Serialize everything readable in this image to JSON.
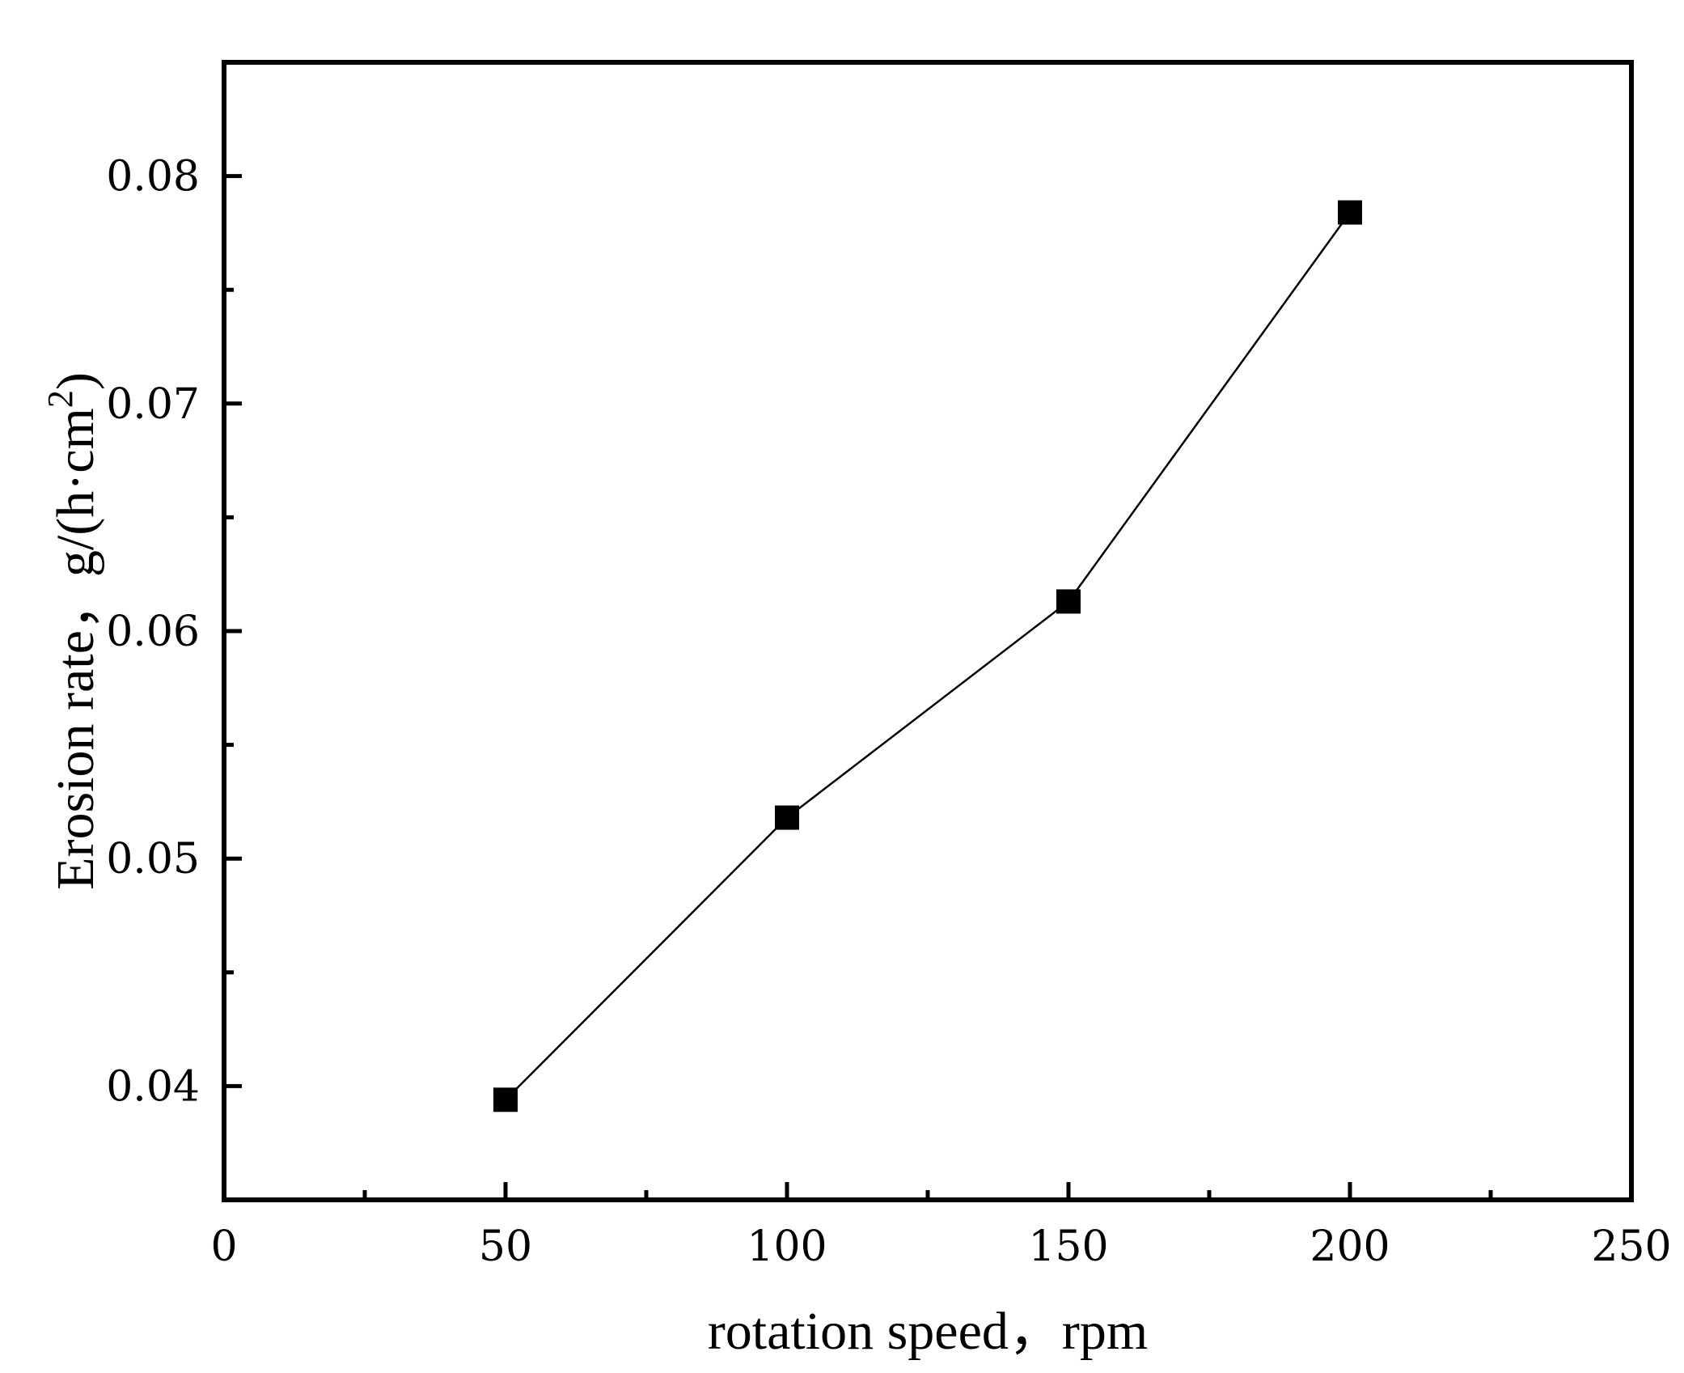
{
  "chart_data": {
    "type": "line",
    "x": [
      50,
      100,
      150,
      200
    ],
    "series": [
      {
        "values": [
          0.0394,
          0.0518,
          0.0613,
          0.0784
        ]
      }
    ],
    "xlabel": "rotation speed，rpm",
    "ylabel_prefix": "Erosion rate，g/(h·cm",
    "ylabel_superscript": "2",
    "ylabel_suffix": ")",
    "xlim": [
      0,
      250
    ],
    "ylim": [
      0.035,
      0.085
    ],
    "x_ticks": [
      0,
      50,
      100,
      150,
      200,
      250
    ],
    "x_tick_labels": [
      "0",
      "50",
      "100",
      "150",
      "200",
      "250"
    ],
    "x_minor_ticks": [
      25,
      75,
      125,
      175,
      225
    ],
    "y_ticks": [
      0.04,
      0.05,
      0.06,
      0.07,
      0.08
    ],
    "y_tick_labels": [
      "0.04",
      "0.05",
      "0.06",
      "0.07",
      "0.08"
    ],
    "y_minor_ticks": [
      0.045,
      0.055,
      0.065,
      0.075
    ],
    "grid": false,
    "marker": "square",
    "line_color": "#000000",
    "marker_color": "#000000"
  }
}
